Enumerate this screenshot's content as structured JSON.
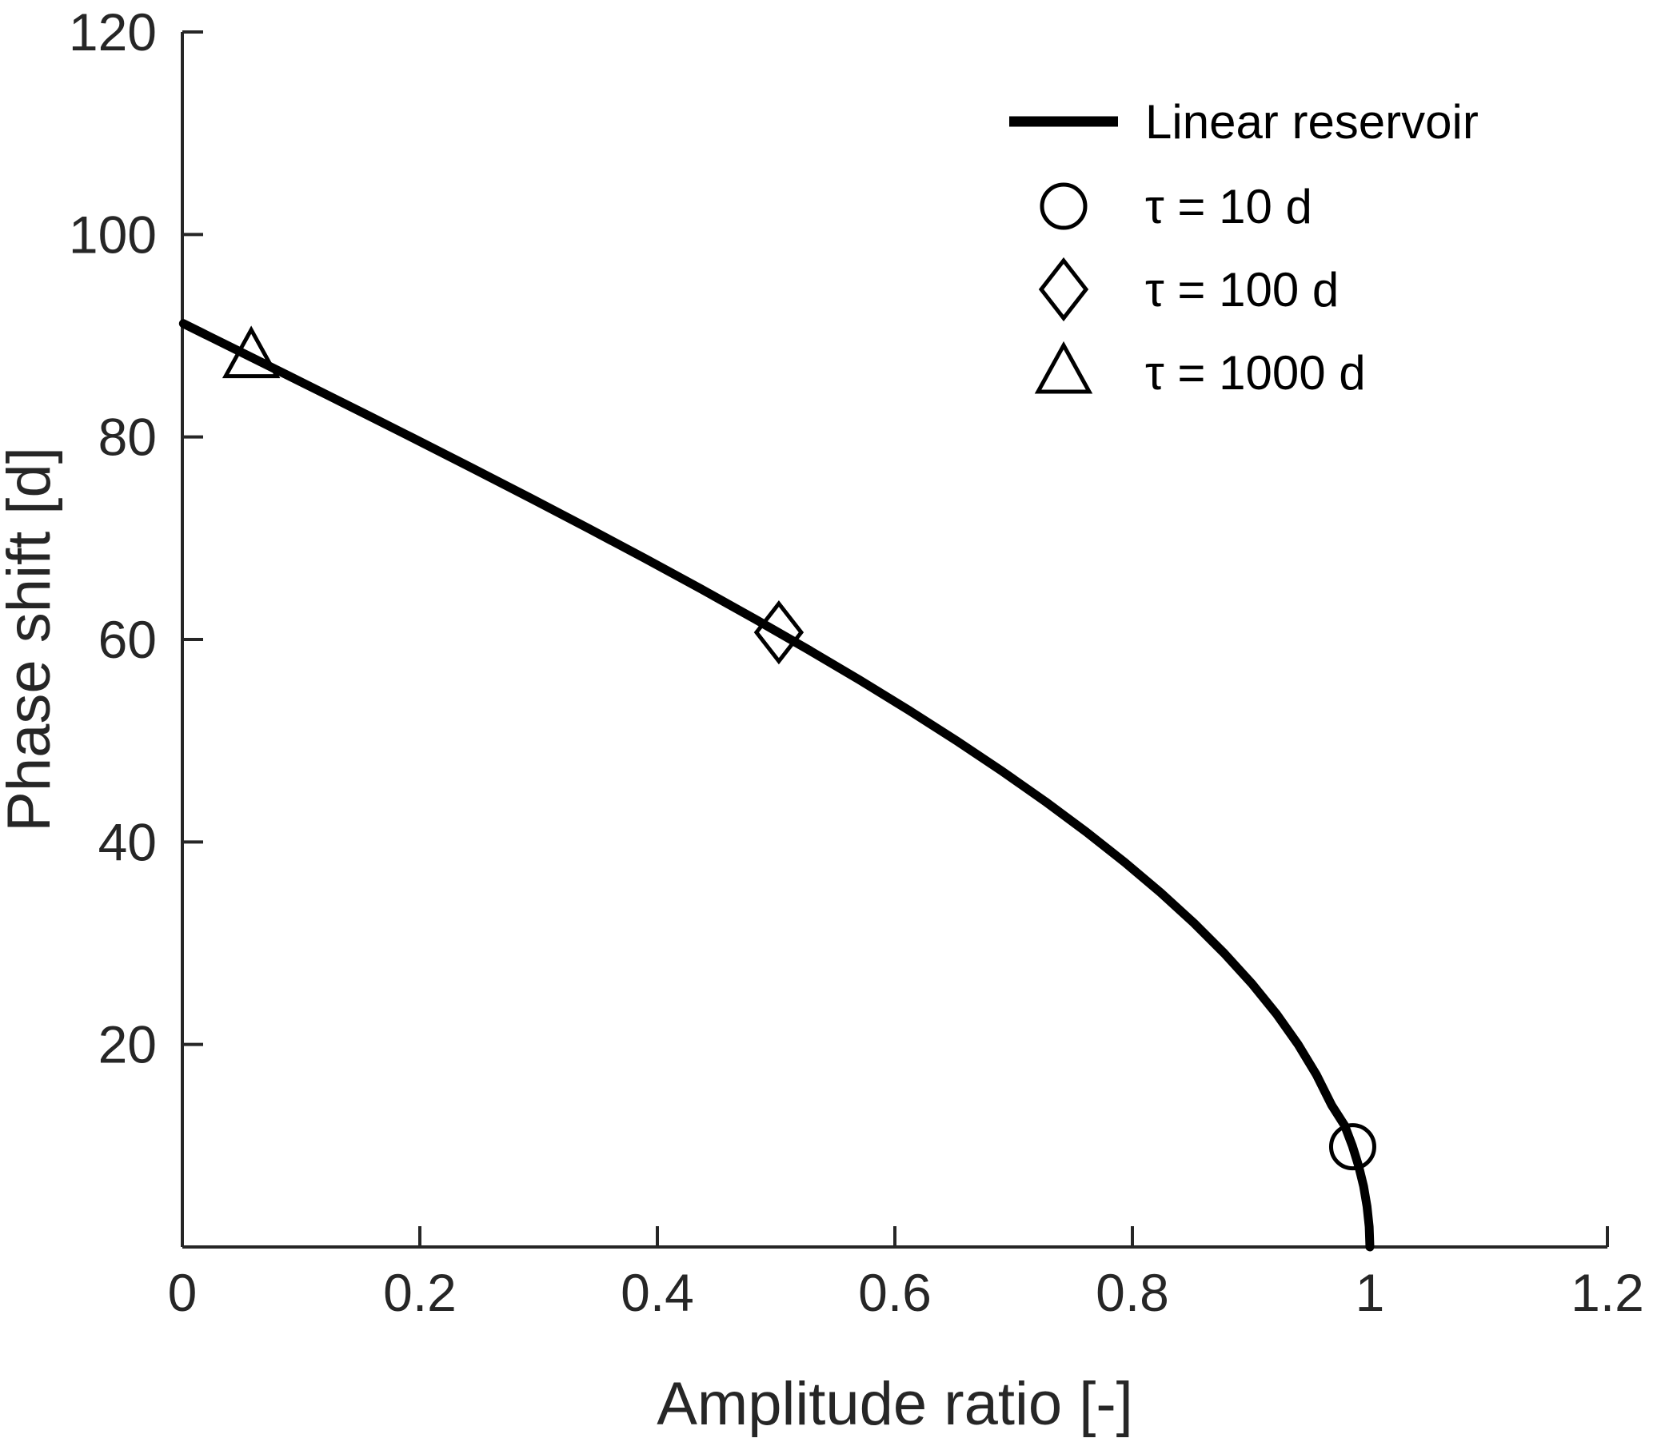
{
  "chart_data": {
    "type": "line",
    "title": "",
    "xlabel": "Amplitude ratio [-]",
    "ylabel": "Phase shift [d]",
    "xlim": [
      0,
      1.2
    ],
    "ylim": [
      0,
      120
    ],
    "grid": false,
    "xticks": [
      {
        "v": 0,
        "label": "0"
      },
      {
        "v": 0.2,
        "label": "0.2"
      },
      {
        "v": 0.4,
        "label": "0.4"
      },
      {
        "v": 0.6,
        "label": "0.6"
      },
      {
        "v": 0.8,
        "label": "0.8"
      },
      {
        "v": 1,
        "label": "1"
      },
      {
        "v": 1.2,
        "label": "1.2"
      }
    ],
    "yticks": [
      {
        "v": 20,
        "label": "20"
      },
      {
        "v": 40,
        "label": "40"
      },
      {
        "v": 60,
        "label": "60"
      },
      {
        "v": 80,
        "label": "80"
      },
      {
        "v": 100,
        "label": "100"
      },
      {
        "v": 120,
        "label": "120"
      }
    ],
    "colors": {
      "curve": "#000000",
      "axis": "#262626",
      "text": "#262626"
    },
    "legend": {
      "position": "top-right",
      "box": false,
      "items": [
        {
          "marker": "line",
          "label": "Linear reservoir"
        },
        {
          "marker": "circle",
          "label": "τ = 10 d"
        },
        {
          "marker": "diamond",
          "label": "τ = 100 d"
        },
        {
          "marker": "triangle",
          "label": "τ = 1000 d"
        }
      ]
    },
    "series": [
      {
        "name": "Linear reservoir",
        "kind": "curve",
        "x": [
          0.0009,
          0.0215,
          0.0559,
          0.0903,
          0.1245,
          0.1586,
          0.1925,
          0.2428,
          0.2926,
          0.3416,
          0.3896,
          0.4367,
          0.4825,
          0.5271,
          0.5703,
          0.6119,
          0.652,
          0.6902,
          0.7267,
          0.7611,
          0.7935,
          0.8238,
          0.8518,
          0.8774,
          0.9007,
          0.9214,
          0.9395,
          0.955,
          0.9678,
          0.9787,
          0.9852,
          0.9905,
          0.9947,
          0.9976,
          0.9994,
          1.0
        ],
        "y": [
          91.2,
          90,
          88,
          86,
          84,
          82,
          80,
          77,
          74,
          71,
          68,
          65,
          62,
          59,
          56,
          53,
          50,
          47,
          44,
          41,
          38,
          35,
          32,
          29,
          26,
          23,
          20,
          17,
          14,
          12,
          10,
          8,
          6,
          4,
          2,
          0
        ]
      },
      {
        "name": "τ = 10 d",
        "kind": "point",
        "marker": "circle",
        "x": 0.9855,
        "y": 9.9
      },
      {
        "name": "τ = 100 d",
        "kind": "point",
        "marker": "diamond",
        "x": 0.5023,
        "y": 60.7
      },
      {
        "name": "τ = 1000 d",
        "kind": "point",
        "marker": "triangle",
        "x": 0.058,
        "y": 87.9
      }
    ]
  }
}
